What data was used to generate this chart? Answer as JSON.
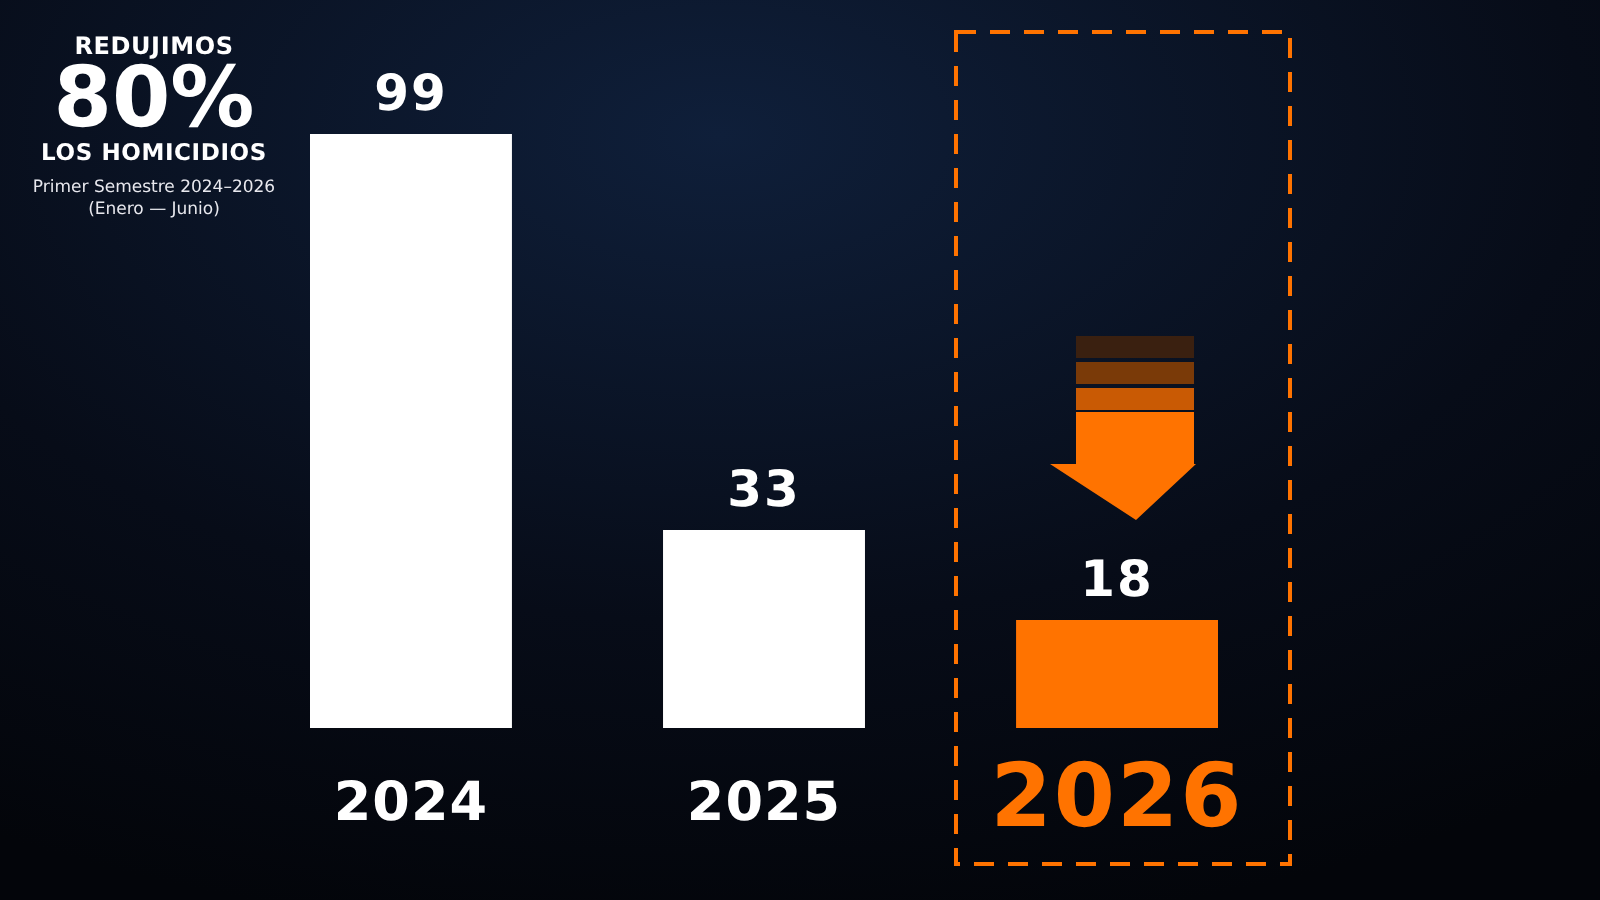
{
  "chart_data": {
    "type": "bar",
    "title": "REDUJIMOS\n80%\nLOS HOMICIDIOS",
    "subtitle": "Primer Semestre 2024–2026\n(Enero — Junio)",
    "categories": [
      "2024",
      "2025",
      "2026"
    ],
    "values": [
      99,
      33,
      18
    ],
    "colors": [
      "#ffffff",
      "#ffffff",
      "#ff7300"
    ],
    "data_labels": true
  }
}
